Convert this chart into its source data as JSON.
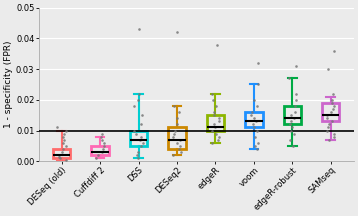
{
  "categories": [
    "DESeq (old)",
    "Cuffdiff 2",
    "DSS",
    "DESeq2",
    "edgeR",
    "voom",
    "edgeR-robust",
    "SAMseq"
  ],
  "box_colors": [
    "#F08080",
    "#FF69B4",
    "#00BFFF",
    "#DAA520",
    "#9ACD32",
    "#00BFFF",
    "#00C957",
    "#DA70D6"
  ],
  "box_colors_actual": [
    "#FF6B6B",
    "#FF69B4",
    "#00CED1",
    "#CC8800",
    "#8DB600",
    "#1E90FF",
    "#00AA44",
    "#CC66CC"
  ],
  "ylabel": "1 - specificity (FPR)",
  "ylim": [
    0,
    0.05
  ],
  "yticks": [
    0.0,
    0.01,
    0.02,
    0.03,
    0.04,
    0.05
  ],
  "hline_y": 0.01,
  "background_color": "#ebebeb",
  "grid_color": "#ffffff",
  "boxes": [
    {
      "q1": 0.001,
      "median": 0.002,
      "q3": 0.004,
      "whislo": 0.0002,
      "whishi": 0.01,
      "points": [
        0.0005,
        0.001,
        0.0015,
        0.002,
        0.003,
        0.004,
        0.005,
        0.006,
        0.007,
        0.008,
        0.009,
        0.01,
        0.011
      ]
    },
    {
      "q1": 0.002,
      "median": 0.003,
      "q3": 0.005,
      "whislo": 0.001,
      "whishi": 0.008,
      "points": [
        0.001,
        0.002,
        0.003,
        0.004,
        0.005,
        0.006,
        0.007,
        0.008,
        0.009
      ]
    },
    {
      "q1": 0.005,
      "median": 0.007,
      "q3": 0.01,
      "whislo": 0.001,
      "whishi": 0.022,
      "points": [
        0.001,
        0.002,
        0.003,
        0.005,
        0.006,
        0.007,
        0.008,
        0.009,
        0.01,
        0.012,
        0.015,
        0.018,
        0.02,
        0.022,
        0.043
      ]
    },
    {
      "q1": 0.004,
      "median": 0.007,
      "q3": 0.011,
      "whislo": 0.002,
      "whishi": 0.018,
      "points": [
        0.002,
        0.003,
        0.004,
        0.005,
        0.006,
        0.007,
        0.008,
        0.009,
        0.01,
        0.012,
        0.014,
        0.016,
        0.018,
        0.042
      ]
    },
    {
      "q1": 0.01,
      "median": 0.011,
      "q3": 0.015,
      "whislo": 0.006,
      "whishi": 0.022,
      "points": [
        0.006,
        0.007,
        0.008,
        0.009,
        0.01,
        0.011,
        0.012,
        0.013,
        0.014,
        0.015,
        0.016,
        0.018,
        0.02,
        0.022,
        0.038
      ]
    },
    {
      "q1": 0.011,
      "median": 0.013,
      "q3": 0.016,
      "whislo": 0.004,
      "whishi": 0.025,
      "points": [
        0.004,
        0.005,
        0.006,
        0.008,
        0.01,
        0.011,
        0.012,
        0.013,
        0.014,
        0.015,
        0.016,
        0.018,
        0.02,
        0.025,
        0.032
      ]
    },
    {
      "q1": 0.012,
      "median": 0.014,
      "q3": 0.018,
      "whislo": 0.005,
      "whishi": 0.027,
      "points": [
        0.005,
        0.007,
        0.009,
        0.01,
        0.011,
        0.012,
        0.013,
        0.014,
        0.015,
        0.016,
        0.018,
        0.02,
        0.022,
        0.027,
        0.031
      ]
    },
    {
      "q1": 0.013,
      "median": 0.015,
      "q3": 0.019,
      "whislo": 0.007,
      "whishi": 0.021,
      "points": [
        0.007,
        0.008,
        0.009,
        0.01,
        0.011,
        0.012,
        0.013,
        0.014,
        0.015,
        0.016,
        0.017,
        0.018,
        0.019,
        0.02,
        0.022,
        0.03,
        0.036
      ]
    }
  ]
}
